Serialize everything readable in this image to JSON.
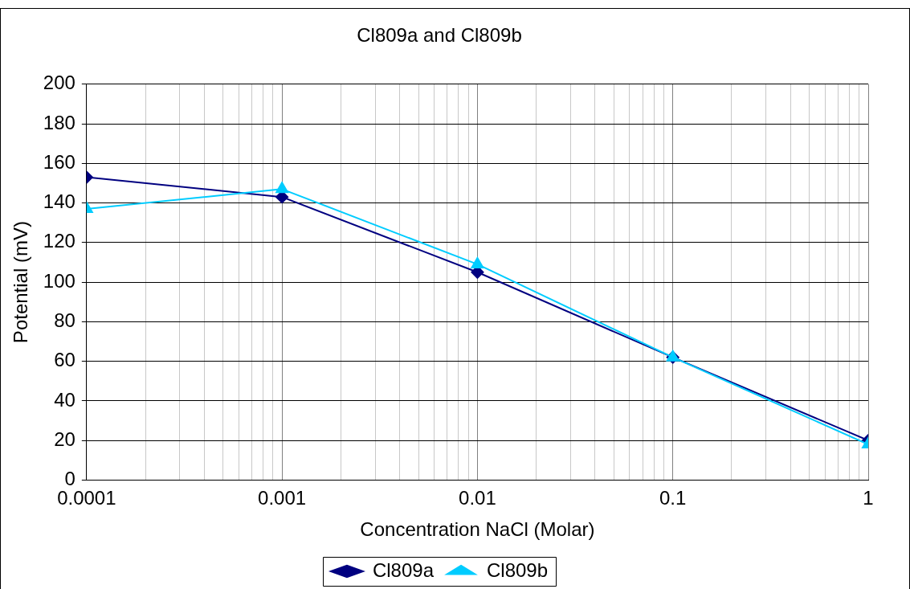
{
  "chart_data": {
    "type": "line",
    "title": "Cl809a and Cl809b",
    "xlabel": "Concentration NaCl (Molar)",
    "ylabel": "Potential (mV)",
    "x": [
      0.0001,
      0.001,
      0.01,
      0.1,
      1
    ],
    "series": [
      {
        "name": "Cl809a",
        "color": "#000080",
        "marker": "diamond",
        "values": [
          153,
          143,
          105,
          62,
          20
        ]
      },
      {
        "name": "Cl809b",
        "color": "#00ccff",
        "marker": "triangle",
        "values": [
          137,
          147,
          109,
          62,
          18
        ]
      }
    ],
    "log": "x",
    "xlim": [
      0.0001,
      1
    ],
    "ylim": [
      0,
      200
    ],
    "xticks": [
      0.0001,
      {
        "value": 0.0002,
        "label": null
      },
      {
        "value": 0.0003,
        "label": null
      },
      {
        "value": 0.0004,
        "label": null
      },
      {
        "value": 0.0005,
        "label": null
      },
      {
        "value": 0.0006,
        "label": null
      },
      {
        "value": 0.0007,
        "label": null
      },
      {
        "value": 0.0008,
        "label": null
      },
      {
        "value": 0.0009,
        "label": null
      },
      0.001,
      {
        "value": 0.002,
        "label": null
      },
      {
        "value": 0.003,
        "label": null
      },
      {
        "value": 0.004,
        "label": null
      },
      {
        "value": 0.005,
        "label": null
      },
      {
        "value": 0.006,
        "label": null
      },
      {
        "value": 0.007,
        "label": null
      },
      {
        "value": 0.008,
        "label": null
      },
      {
        "value": 0.009,
        "label": null
      },
      0.01,
      {
        "value": 0.02,
        "label": null
      },
      {
        "value": 0.03,
        "label": null
      },
      {
        "value": 0.04,
        "label": null
      },
      {
        "value": 0.05,
        "label": null
      },
      {
        "value": 0.06,
        "label": null
      },
      {
        "value": 0.07,
        "label": null
      },
      {
        "value": 0.08,
        "label": null
      },
      {
        "value": 0.09,
        "label": null
      },
      0.1,
      {
        "value": 0.2,
        "label": null
      },
      {
        "value": 0.3,
        "label": null
      },
      {
        "value": 0.4,
        "label": null
      },
      {
        "value": 0.5,
        "label": null
      },
      {
        "value": 0.6,
        "label": null
      },
      {
        "value": 0.7,
        "label": null
      },
      {
        "value": 0.8,
        "label": null
      },
      {
        "value": 0.9,
        "label": null
      },
      1
    ],
    "yticks": [
      0,
      20,
      40,
      60,
      80,
      100,
      120,
      140,
      160,
      180,
      200
    ],
    "grid": true,
    "legend": "bottom",
    "line_style": "solid"
  }
}
